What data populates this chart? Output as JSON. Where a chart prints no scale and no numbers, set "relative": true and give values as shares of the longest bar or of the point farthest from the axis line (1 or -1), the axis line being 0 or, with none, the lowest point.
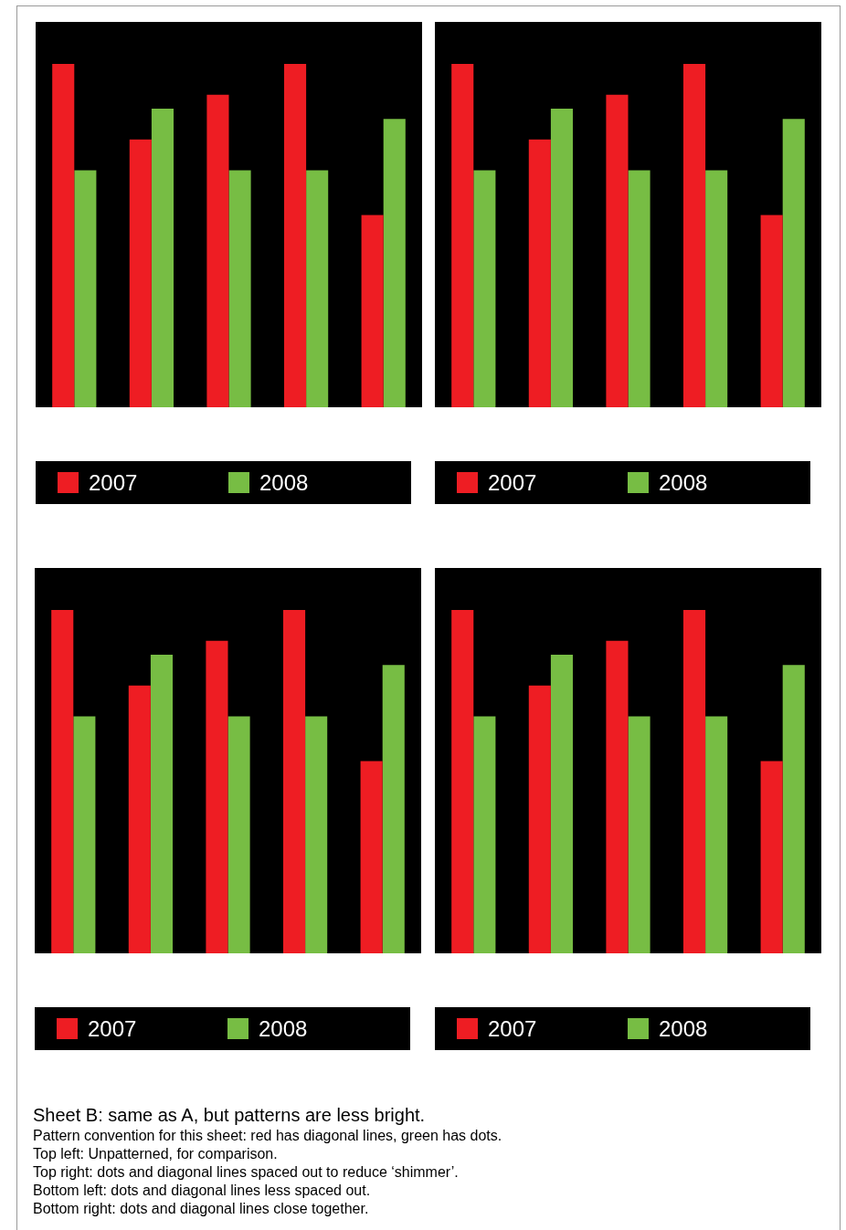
{
  "chart_data": [
    {
      "type": "bar",
      "categories": [
        null,
        null,
        null,
        null,
        null
      ],
      "relative": true,
      "legend": "bottom",
      "series": [
        {
          "name": "2007",
          "color": "#ee1d23",
          "values": [
            1,
            0.78,
            0.91,
            1,
            0.56
          ]
        },
        {
          "name": "2008",
          "color": "#77bd44",
          "values": [
            0.69,
            0.87,
            0.69,
            0.69,
            0.84
          ]
        }
      ]
    },
    {
      "type": "bar",
      "categories": [
        null,
        null,
        null,
        null,
        null
      ],
      "relative": true,
      "legend": "bottom",
      "series": [
        {
          "name": "2007",
          "color": "#ee1d23",
          "values": [
            1,
            0.78,
            0.91,
            1,
            0.56
          ]
        },
        {
          "name": "2008",
          "color": "#77bd44",
          "values": [
            0.69,
            0.87,
            0.69,
            0.69,
            0.84
          ]
        }
      ]
    },
    {
      "type": "bar",
      "categories": [
        null,
        null,
        null,
        null,
        null
      ],
      "relative": true,
      "legend": "bottom",
      "series": [
        {
          "name": "2007",
          "color": "#ee1d23",
          "values": [
            1,
            0.78,
            0.91,
            1,
            0.56
          ]
        },
        {
          "name": "2008",
          "color": "#77bd44",
          "values": [
            0.69,
            0.87,
            0.69,
            0.69,
            0.84
          ]
        }
      ]
    },
    {
      "type": "bar",
      "categories": [
        null,
        null,
        null,
        null,
        null
      ],
      "relative": true,
      "legend": "bottom",
      "series": [
        {
          "name": "2007",
          "color": "#ee1d23",
          "values": [
            1,
            0.78,
            0.91,
            1,
            0.56
          ]
        },
        {
          "name": "2008",
          "color": "#77bd44",
          "values": [
            0.69,
            0.87,
            0.69,
            0.69,
            0.84
          ]
        }
      ],
      "annotations": [
        "Sheet B: same as A, but patterns are less bright.",
        "Pattern convention for this sheet: red has diagonal lines, green has dots.",
        "Top left: Unpatterned, for comparison.",
        "Top right: dots and diagonal lines spaced out to reduce ‘shimmer’.",
        "Bottom left: dots and diagonal lines less spaced out.",
        "Bottom right: dots and diagonal lines close together."
      ]
    }
  ]
}
